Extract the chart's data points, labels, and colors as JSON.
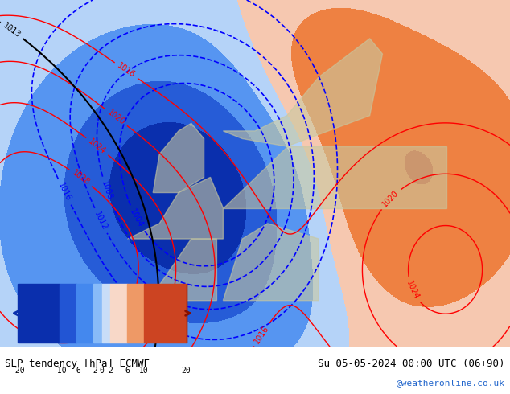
{
  "title_left": "SLP tendency [hPa] ECMWF",
  "title_right": "Su 05-05-2024 00:00 UTC (06+90)",
  "credit": "@weatheronline.co.uk",
  "colorbar_levels": [
    -20,
    -10,
    -6,
    -2,
    0,
    2,
    6,
    10,
    20
  ],
  "colorbar_colors": [
    "#0a2fad",
    "#2255d4",
    "#4488ee",
    "#88bbf8",
    "#c8ddf8",
    "#ffffff",
    "#f8d8c8",
    "#ee9966",
    "#cc4422",
    "#881100"
  ],
  "background_map_color": "#e8e0c8",
  "sea_color": "#d0dce8",
  "land_color": "#e8e4d0",
  "fig_width": 6.34,
  "fig_height": 4.9,
  "dpi": 100
}
